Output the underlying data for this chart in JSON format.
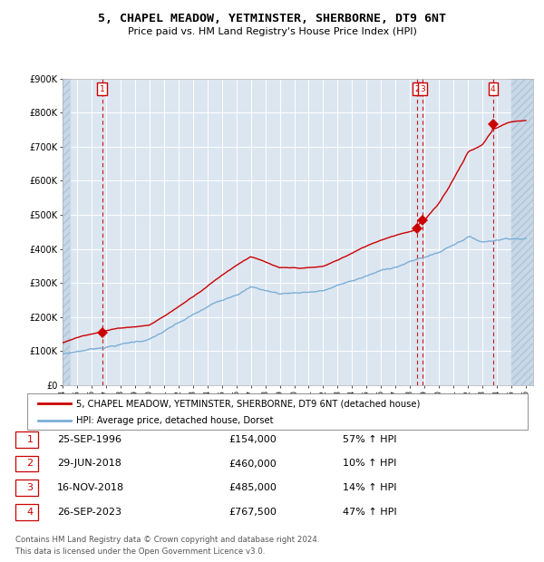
{
  "title": "5, CHAPEL MEADOW, YETMINSTER, SHERBORNE, DT9 6NT",
  "subtitle": "Price paid vs. HM Land Registry's House Price Index (HPI)",
  "legend_line1": "5, CHAPEL MEADOW, YETMINSTER, SHERBORNE, DT9 6NT (detached house)",
  "legend_line2": "HPI: Average price, detached house, Dorset",
  "footer1": "Contains HM Land Registry data © Crown copyright and database right 2024.",
  "footer2": "This data is licensed under the Open Government Licence v3.0.",
  "transactions": [
    {
      "num": 1,
      "date": "25-SEP-1996",
      "price": 154000,
      "pct": "57%",
      "x_year": 1996.73
    },
    {
      "num": 2,
      "date": "29-JUN-2018",
      "price": 460000,
      "pct": "10%",
      "x_year": 2018.49
    },
    {
      "num": 3,
      "date": "16-NOV-2018",
      "price": 485000,
      "pct": "14%",
      "x_year": 2018.87
    },
    {
      "num": 4,
      "date": "26-SEP-2023",
      "price": 767500,
      "pct": "47%",
      "x_year": 2023.73
    }
  ],
  "xlim": [
    1994.0,
    2026.5
  ],
  "ylim": [
    0,
    900000
  ],
  "yticks": [
    0,
    100000,
    200000,
    300000,
    400000,
    500000,
    600000,
    700000,
    800000,
    900000
  ],
  "ytick_labels": [
    "£0",
    "£100K",
    "£200K",
    "£300K",
    "£400K",
    "£500K",
    "£600K",
    "£700K",
    "£800K",
    "£900K"
  ],
  "xticks": [
    1994,
    1995,
    1996,
    1997,
    1998,
    1999,
    2000,
    2001,
    2002,
    2003,
    2004,
    2005,
    2006,
    2007,
    2008,
    2009,
    2010,
    2011,
    2012,
    2013,
    2014,
    2015,
    2016,
    2017,
    2018,
    2019,
    2020,
    2021,
    2022,
    2023,
    2024,
    2025,
    2026
  ],
  "bg_color": "#dce6f1",
  "hatch_color": "#c8d8e8",
  "red_color": "#cc0000",
  "blue_color": "#7aaed6",
  "grid_color": "#ffffff",
  "hatch_left_end": 1994.5,
  "hatch_right_start": 2025.0
}
